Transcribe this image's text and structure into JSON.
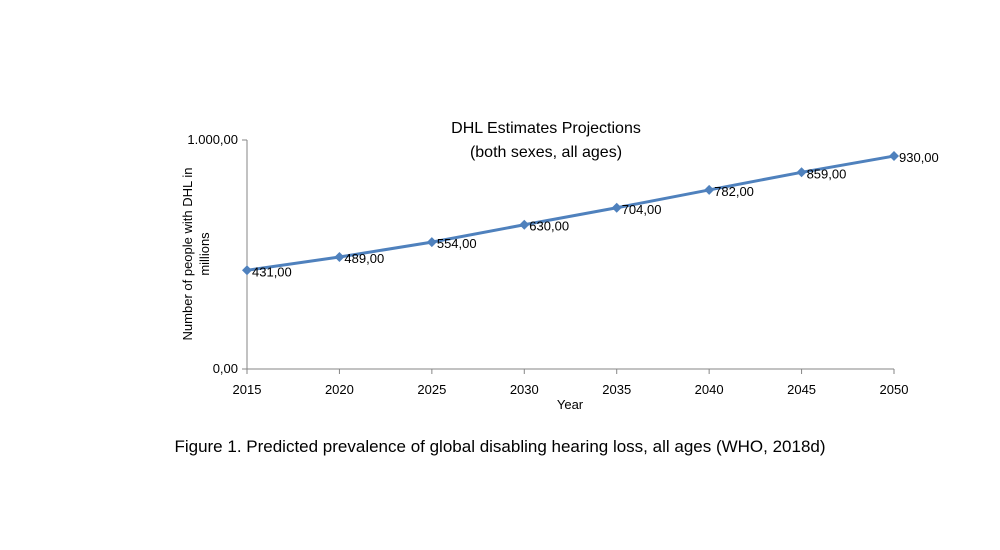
{
  "chart_data": {
    "type": "line",
    "title": [
      "DHL Estimates Projections",
      "(both sexes, all ages)"
    ],
    "xlabel": "Year",
    "ylabel": [
      "Number of people with DHL in",
      "millions"
    ],
    "x": [
      2015,
      2020,
      2025,
      2030,
      2035,
      2040,
      2045,
      2050
    ],
    "x_tick_labels": [
      "2015",
      "2020",
      "2025",
      "2030",
      "2035",
      "2040",
      "2045",
      "2050"
    ],
    "series": [
      {
        "name": "DHL estimates",
        "values": [
          431,
          489,
          554,
          630,
          704,
          782,
          859,
          930
        ],
        "labels": [
          "431,00",
          "489,00",
          "554,00",
          "630,00",
          "704,00",
          "782,00",
          "859,00",
          "930,00"
        ]
      }
    ],
    "ylim": [
      0,
      1000
    ],
    "y_ticks": [
      0,
      1000
    ],
    "y_tick_labels": [
      "0,00",
      "1.000,00"
    ],
    "grid": false,
    "line_color": "#4f81bd"
  },
  "caption": "Figure 1.  Predicted prevalence of global disabling hearing loss, all ages (WHO, 2018d)"
}
